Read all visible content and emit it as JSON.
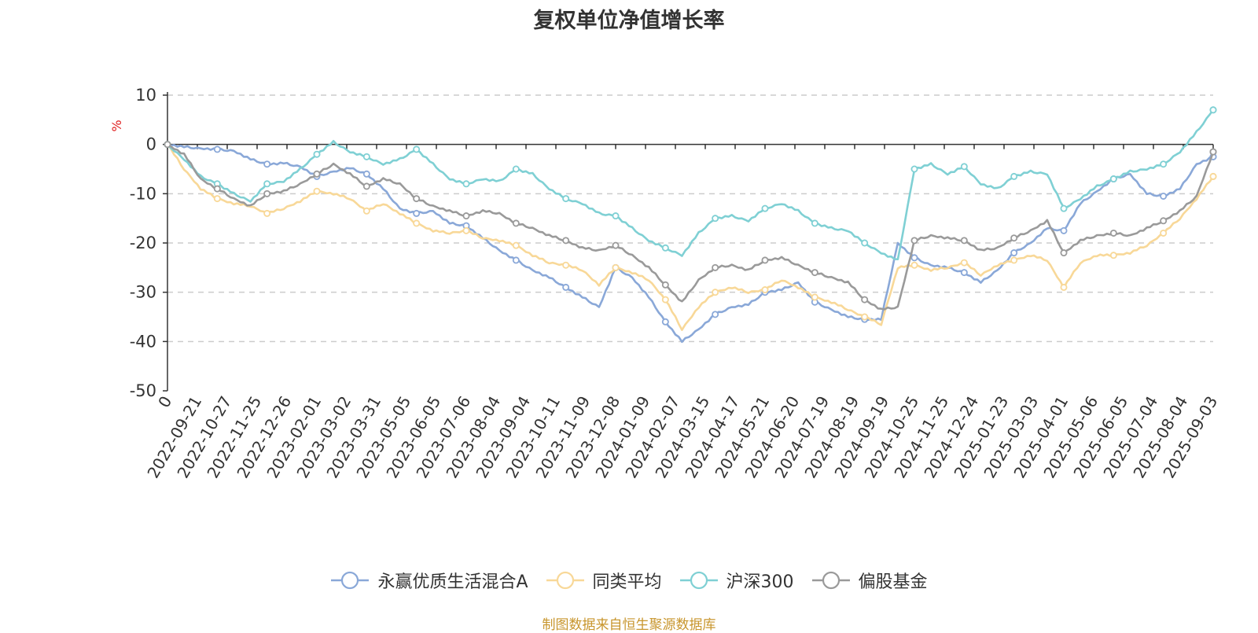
{
  "chart_data": {
    "type": "line",
    "title": "复权单位净值增长率",
    "ylabel": "%",
    "xlabel": "",
    "ylim": [
      -50,
      10
    ],
    "yticks": [
      "10",
      "0",
      "-10",
      "-20",
      "-30",
      "-40",
      "-50"
    ],
    "x_tick_labels": [
      "0",
      "2022-09-21",
      "2022-10-27",
      "2022-11-25",
      "2022-12-26",
      "2023-02-01",
      "2023-03-02",
      "2023-03-31",
      "2023-05-05",
      "2023-06-05",
      "2023-07-06",
      "2023-08-04",
      "2023-09-04",
      "2023-10-11",
      "2023-11-09",
      "2023-12-08",
      "2024-01-09",
      "2024-02-07",
      "2024-03-15",
      "2024-04-17",
      "2024-05-21",
      "2024-06-20",
      "2024-07-19",
      "2024-08-19",
      "2024-09-19",
      "2024-10-25",
      "2024-11-25",
      "2024-12-24",
      "2025-01-23",
      "2025-03-03",
      "2025-04-01",
      "2025-05-06",
      "2025-06-05",
      "2025-07-04",
      "2025-08-04",
      "2025-09-03"
    ],
    "legend_position": "bottom",
    "grid": true,
    "series": [
      {
        "name": "永赢优质生活混合A",
        "color": "#8aa8d8",
        "values": [
          0,
          -0.5,
          -0.8,
          -1.0,
          -1.3,
          -3.0,
          -4.0,
          -3.8,
          -4.5,
          -6.5,
          -5.5,
          -4.8,
          -6.0,
          -9.0,
          -13.0,
          -14.0,
          -13.5,
          -16.0,
          -16.5,
          -19.0,
          -21.5,
          -23.5,
          -25.5,
          -27.0,
          -29.0,
          -31.0,
          -33.0,
          -25.0,
          -27.0,
          -31.0,
          -36.0,
          -40.0,
          -37.5,
          -34.5,
          -33.0,
          -32.5,
          -30.0,
          -29.5,
          -28.0,
          -32.0,
          -33.5,
          -35.0,
          -35.5,
          -35.5,
          -20.0,
          -23.0,
          -24.5,
          -25.0,
          -26.0,
          -28.0,
          -25.5,
          -22.0,
          -20.0,
          -17.0,
          -17.5,
          -12.0,
          -9.5,
          -7.0,
          -6.0,
          -10.0,
          -10.5,
          -9.0,
          -4.0,
          -2.5
        ]
      },
      {
        "name": "同类平均",
        "color": "#f8d898",
        "values": [
          0,
          -5.0,
          -9.0,
          -11.0,
          -12.0,
          -12.5,
          -14.0,
          -13.0,
          -11.5,
          -9.5,
          -10.0,
          -11.0,
          -13.5,
          -12.0,
          -14.0,
          -16.0,
          -17.5,
          -18.0,
          -17.5,
          -19.0,
          -19.5,
          -20.5,
          -22.5,
          -24.0,
          -24.5,
          -25.5,
          -28.5,
          -25.0,
          -26.0,
          -27.5,
          -31.5,
          -37.5,
          -33.0,
          -30.0,
          -29.0,
          -30.0,
          -29.5,
          -27.5,
          -29.0,
          -31.0,
          -32.0,
          -33.5,
          -35.0,
          -36.5,
          -25.0,
          -24.5,
          -25.5,
          -25.0,
          -24.0,
          -26.5,
          -24.5,
          -23.5,
          -22.5,
          -23.5,
          -29.0,
          -24.0,
          -22.5,
          -22.5,
          -22.0,
          -20.5,
          -18.0,
          -15.0,
          -11.0,
          -6.5
        ]
      },
      {
        "name": "沪深300",
        "color": "#7fd0d4",
        "values": [
          0,
          -3.0,
          -6.5,
          -8.0,
          -10.0,
          -11.5,
          -8.0,
          -7.5,
          -5.0,
          -2.0,
          0.5,
          -1.5,
          -2.5,
          -4.0,
          -3.0,
          -1.0,
          -4.0,
          -7.0,
          -8.0,
          -7.0,
          -7.5,
          -5.0,
          -6.0,
          -9.0,
          -11.0,
          -12.0,
          -14.0,
          -14.5,
          -17.0,
          -19.5,
          -21.0,
          -22.5,
          -18.0,
          -15.0,
          -14.5,
          -15.5,
          -13.0,
          -12.0,
          -13.5,
          -16.0,
          -17.0,
          -17.5,
          -20.0,
          -22.0,
          -23.5,
          -5.0,
          -4.0,
          -6.0,
          -4.5,
          -8.0,
          -9.0,
          -6.5,
          -5.5,
          -6.0,
          -13.0,
          -11.0,
          -8.5,
          -7.0,
          -5.5,
          -5.0,
          -4.0,
          -1.5,
          2.5,
          7.0
        ]
      },
      {
        "name": "偏股基金",
        "color": "#9a9a9a",
        "values": [
          0,
          -2.0,
          -7.0,
          -9.0,
          -11.0,
          -12.5,
          -10.0,
          -9.5,
          -8.0,
          -6.0,
          -4.0,
          -6.0,
          -8.5,
          -7.0,
          -8.0,
          -11.0,
          -12.5,
          -13.5,
          -14.5,
          -13.5,
          -14.0,
          -16.0,
          -17.0,
          -18.5,
          -19.5,
          -21.0,
          -21.5,
          -20.5,
          -22.5,
          -25.0,
          -28.5,
          -32.0,
          -27.5,
          -25.0,
          -24.5,
          -25.5,
          -23.5,
          -23.0,
          -24.5,
          -26.0,
          -27.0,
          -28.0,
          -31.5,
          -33.5,
          -33.0,
          -19.5,
          -18.5,
          -19.0,
          -19.5,
          -21.5,
          -21.0,
          -19.0,
          -17.5,
          -15.5,
          -22.0,
          -19.5,
          -18.5,
          -18.0,
          -18.5,
          -17.0,
          -15.5,
          -13.5,
          -10.5,
          -1.5
        ]
      }
    ]
  },
  "source_note": "制图数据来自恒生聚源数据库"
}
